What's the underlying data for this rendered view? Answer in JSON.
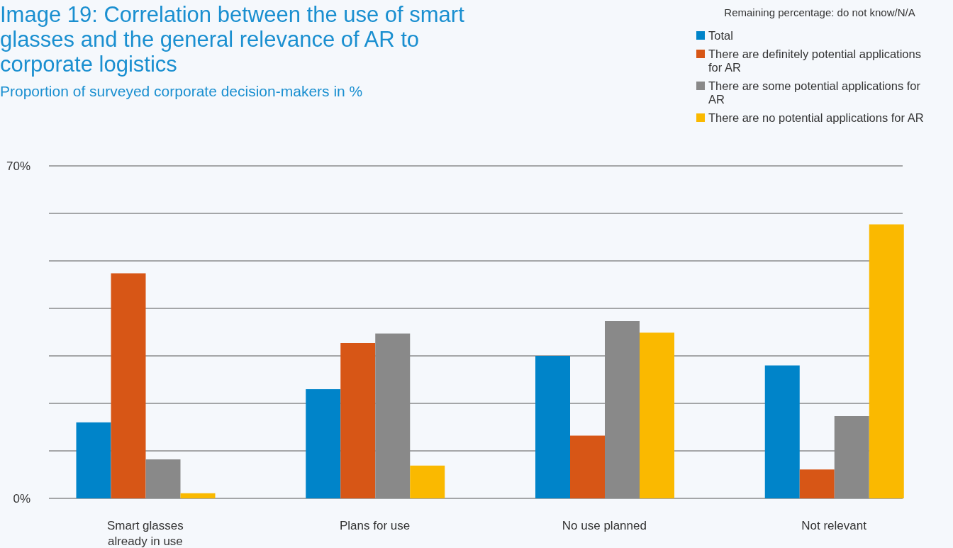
{
  "chart_data": {
    "type": "bar",
    "title": "Image 19: Correlation between the use of smart glasses and the general relevance of AR to corporate logistics",
    "subtitle": "Proportion of surveyed corporate decision-makers in %",
    "annotations": [
      "Remaining percentage: do not know/N/A"
    ],
    "categories": [
      "Smart glasses already in use",
      "Plans for use",
      "No use planned",
      "Not relevant"
    ],
    "series": [
      {
        "name": "Total",
        "color": "#0084c9",
        "values": [
          16,
          23,
          30,
          28
        ]
      },
      {
        "name": "There are definitely potential applications for AR",
        "color": "#d75616",
        "values": [
          47.4,
          32.7,
          13.2,
          6.1
        ]
      },
      {
        "name": "There are some potential applications for AR",
        "color": "#898989",
        "values": [
          8.2,
          34.7,
          37.3,
          17.3
        ]
      },
      {
        "name": "There are no potential applications for AR",
        "color": "#fab900",
        "values": [
          1.1,
          6.9,
          34.9,
          57.7
        ]
      }
    ],
    "ylim": [
      0,
      70
    ],
    "yticks": [
      {
        "value": 0,
        "label": "0%"
      },
      {
        "value": 10,
        "label": null
      },
      {
        "value": 20,
        "label": null
      },
      {
        "value": 30,
        "label": null
      },
      {
        "value": 40,
        "label": null
      },
      {
        "value": 50,
        "label": null
      },
      {
        "value": 60,
        "label": null
      },
      {
        "value": 70,
        "label": "70%"
      }
    ],
    "grid": "y",
    "legend": "top right"
  }
}
